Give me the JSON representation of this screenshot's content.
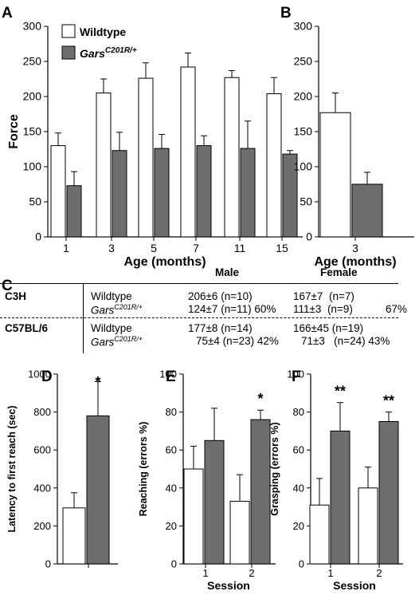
{
  "colors": {
    "wildtype": "#ffffff",
    "mutant": "#6e6e6e",
    "stroke": "#000000"
  },
  "panel_labels": {
    "A": "A",
    "B": "B",
    "C": "C",
    "D": "D",
    "E": "E",
    "F": "F"
  },
  "chart_data": [
    {
      "panel": "A",
      "type": "bar",
      "ylabel": "Force",
      "xlabel": "Age (months)",
      "ylim": [
        0,
        300
      ],
      "yticks": [
        0,
        50,
        100,
        150,
        200,
        250,
        300
      ],
      "categories": [
        "1",
        "3",
        "5",
        "7",
        "11",
        "15"
      ],
      "legend": {
        "wildtype": "Wildtype",
        "mutant_base": "Gars",
        "mutant_sup": "C201R/+"
      },
      "series": [
        {
          "name": "Wildtype",
          "values": [
            130,
            205,
            226,
            242,
            227,
            204
          ],
          "errors": [
            18,
            20,
            22,
            20,
            10,
            23
          ]
        },
        {
          "name": "GarsC201R/+",
          "values": [
            73,
            123,
            126,
            130,
            126,
            118
          ],
          "errors": [
            20,
            26,
            20,
            14,
            39,
            5
          ]
        }
      ]
    },
    {
      "panel": "B",
      "type": "bar",
      "xlabel": "Age (months)",
      "ylim": [
        0,
        300
      ],
      "yticks": [
        0,
        50,
        100,
        150,
        200,
        250,
        300
      ],
      "categories": [
        "3"
      ],
      "series": [
        {
          "name": "Wildtype",
          "values": [
            177
          ],
          "errors": [
            28
          ]
        },
        {
          "name": "GarsC201R/+",
          "values": [
            75
          ],
          "errors": [
            17
          ]
        }
      ]
    },
    {
      "panel": "D",
      "type": "bar",
      "ylabel": "Latency to first reach (sec)",
      "ylim": [
        0,
        1000
      ],
      "yticks": [
        0,
        200,
        400,
        600,
        800,
        1000
      ],
      "categories": [
        ""
      ],
      "series": [
        {
          "name": "Wildtype",
          "values": [
            295
          ],
          "errors": [
            80
          ]
        },
        {
          "name": "GarsC201R/+",
          "values": [
            780
          ],
          "errors": [
            180
          ]
        }
      ],
      "annotations": [
        "*"
      ]
    },
    {
      "panel": "E",
      "type": "bar",
      "ylabel": "Reaching (errors %)",
      "xlabel": "Session",
      "ylim": [
        0,
        100
      ],
      "yticks": [
        0,
        20,
        40,
        60,
        80,
        100
      ],
      "categories": [
        "1",
        "2"
      ],
      "series": [
        {
          "name": "Wildtype",
          "values": [
            50,
            33
          ],
          "errors": [
            12,
            14
          ]
        },
        {
          "name": "GarsC201R/+",
          "values": [
            65,
            76
          ],
          "errors": [
            17,
            5
          ]
        }
      ],
      "annotations": [
        "",
        "*"
      ]
    },
    {
      "panel": "F",
      "type": "bar",
      "ylabel": "Grasping (errors %)",
      "xlabel": "Session",
      "ylim": [
        0,
        100
      ],
      "yticks": [
        0,
        20,
        40,
        60,
        80,
        100
      ],
      "categories": [
        "1",
        "2"
      ],
      "series": [
        {
          "name": "Wildtype",
          "values": [
            31,
            40
          ],
          "errors": [
            14,
            11
          ]
        },
        {
          "name": "GarsC201R/+",
          "values": [
            70,
            75
          ],
          "errors": [
            15,
            5
          ]
        }
      ],
      "annotations": [
        "**",
        "**"
      ]
    },
    {
      "panel": "C",
      "type": "table",
      "headers": {
        "male": "Male",
        "female": "Female"
      },
      "rows": [
        {
          "strain": "C3H",
          "wt_label": "Wildtype",
          "wt_male": "206±6 (n=10)",
          "wt_female": "167±7  (n=7)",
          "mut_base": "Gars",
          "mut_sup": "C201R/+",
          "mut_male": "124±7 (n=11) 60%",
          "mut_female": "111±3  (n=9)",
          "mut_female_pct": "67%"
        },
        {
          "strain": "C57BL/6",
          "wt_label": "Wildtype",
          "wt_male": "177±8 (n=14)",
          "wt_female": "166±45 (n=19)",
          "mut_base": "Gars",
          "mut_sup": "C201R/+",
          "mut_male": "75±4 (n=23) 42%",
          "mut_female": "71±3   (n=24) 43%",
          "mut_female_pct": ""
        }
      ]
    }
  ]
}
